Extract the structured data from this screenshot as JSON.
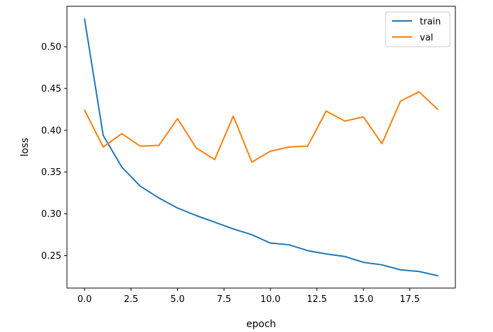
{
  "chart_data": {
    "type": "line",
    "xlabel": "epoch",
    "ylabel": "loss",
    "x": [
      0,
      1,
      2,
      3,
      4,
      5,
      6,
      7,
      8,
      9,
      10,
      11,
      12,
      13,
      14,
      15,
      16,
      17,
      18,
      19
    ],
    "series": [
      {
        "name": "train",
        "color": "#1f77b4",
        "values": [
          0.533,
          0.394,
          0.356,
          0.333,
          0.319,
          0.307,
          0.298,
          0.29,
          0.282,
          0.275,
          0.265,
          0.263,
          0.256,
          0.252,
          0.249,
          0.242,
          0.239,
          0.233,
          0.231,
          0.226
        ]
      },
      {
        "name": "val",
        "color": "#ff7f0e",
        "values": [
          0.424,
          0.38,
          0.396,
          0.381,
          0.382,
          0.414,
          0.379,
          0.365,
          0.417,
          0.362,
          0.375,
          0.38,
          0.381,
          0.423,
          0.411,
          0.416,
          0.384,
          0.435,
          0.446,
          0.425
        ]
      }
    ],
    "xlim": [
      -0.95,
      19.95
    ],
    "ylim": [
      0.2112,
      0.5484
    ],
    "xticks": [
      0.0,
      2.5,
      5.0,
      7.5,
      10.0,
      12.5,
      15.0,
      17.5
    ],
    "xtick_labels": [
      "0.0",
      "2.5",
      "5.0",
      "7.5",
      "10.0",
      "12.5",
      "15.0",
      "17.5"
    ],
    "yticks": [
      0.25,
      0.3,
      0.35,
      0.4,
      0.45,
      0.5
    ],
    "ytick_labels": [
      "0.25",
      "0.30",
      "0.35",
      "0.40",
      "0.45",
      "0.50"
    ],
    "grid": false,
    "legend_position": "top-right"
  }
}
